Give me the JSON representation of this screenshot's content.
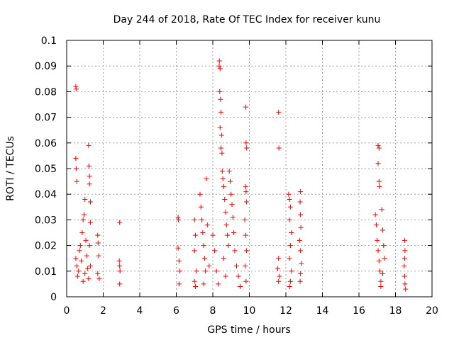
{
  "chart_data": {
    "type": "scatter",
    "title": "Day 244 of 2018, Rate Of TEC Index for receiver kunu",
    "xlabel": "GPS time / hours",
    "ylabel": "ROTI / TECUs",
    "xlim": [
      0,
      20
    ],
    "ylim": [
      0,
      0.1
    ],
    "x_ticks": [
      0,
      2,
      4,
      6,
      8,
      10,
      12,
      14,
      16,
      18,
      20
    ],
    "x_tick_labels": [
      "0",
      "2",
      "4",
      "6",
      "8",
      "10",
      "12",
      "14",
      "16",
      "18",
      "20"
    ],
    "y_ticks": [
      0,
      0.01,
      0.02,
      0.03,
      0.04,
      0.05,
      0.06,
      0.07,
      0.08,
      0.09,
      0.1
    ],
    "y_tick_labels": [
      "0",
      "0.01",
      "0.02",
      "0.03",
      "0.04",
      "0.05",
      "0.06",
      "0.07",
      "0.08",
      "0.09",
      "0.1"
    ],
    "grid": true,
    "marker": "+",
    "color": "#ff0000",
    "series": [
      {
        "name": "ROTI",
        "points": [
          [
            0.5,
            0.082
          ],
          [
            0.52,
            0.081
          ],
          [
            0.5,
            0.054
          ],
          [
            0.52,
            0.05
          ],
          [
            0.55,
            0.045
          ],
          [
            0.5,
            0.015
          ],
          [
            0.55,
            0.012
          ],
          [
            0.6,
            0.008
          ],
          [
            0.65,
            0.01
          ],
          [
            0.7,
            0.018
          ],
          [
            0.75,
            0.02
          ],
          [
            0.8,
            0.014
          ],
          [
            0.85,
            0.025
          ],
          [
            0.9,
            0.03
          ],
          [
            0.95,
            0.032
          ],
          [
            1.0,
            0.038
          ],
          [
            1.05,
            0.022
          ],
          [
            1.1,
            0.016
          ],
          [
            0.9,
            0.006
          ],
          [
            1.0,
            0.009
          ],
          [
            1.15,
            0.011
          ],
          [
            1.2,
            0.059
          ],
          [
            1.22,
            0.051
          ],
          [
            1.25,
            0.047
          ],
          [
            1.25,
            0.044
          ],
          [
            1.3,
            0.037
          ],
          [
            1.3,
            0.029
          ],
          [
            1.25,
            0.02
          ],
          [
            1.3,
            0.012
          ],
          [
            1.2,
            0.007
          ],
          [
            1.7,
            0.024
          ],
          [
            1.72,
            0.021
          ],
          [
            1.75,
            0.016
          ],
          [
            1.7,
            0.009
          ],
          [
            1.78,
            0.007
          ],
          [
            2.9,
            0.029
          ],
          [
            2.88,
            0.014
          ],
          [
            2.9,
            0.012
          ],
          [
            2.92,
            0.01
          ],
          [
            2.9,
            0.005
          ],
          [
            6.1,
            0.031
          ],
          [
            6.12,
            0.03
          ],
          [
            6.1,
            0.019
          ],
          [
            6.15,
            0.014
          ],
          [
            6.2,
            0.01
          ],
          [
            6.15,
            0.005
          ],
          [
            7.0,
            0.03
          ],
          [
            7.05,
            0.024
          ],
          [
            7.0,
            0.018
          ],
          [
            7.1,
            0.01
          ],
          [
            7.0,
            0.006
          ],
          [
            7.05,
            0.004
          ],
          [
            7.3,
            0.04
          ],
          [
            7.35,
            0.035
          ],
          [
            7.4,
            0.03
          ],
          [
            7.45,
            0.025
          ],
          [
            7.5,
            0.02
          ],
          [
            7.55,
            0.015
          ],
          [
            7.6,
            0.01
          ],
          [
            7.5,
            0.005
          ],
          [
            7.65,
            0.046
          ],
          [
            7.7,
            0.028
          ],
          [
            7.8,
            0.012
          ],
          [
            8.0,
            0.024
          ],
          [
            8.1,
            0.018
          ],
          [
            8.2,
            0.01
          ],
          [
            8.3,
            0.005
          ],
          [
            8.35,
            0.09
          ],
          [
            8.36,
            0.092
          ],
          [
            8.4,
            0.089
          ],
          [
            8.38,
            0.08
          ],
          [
            8.42,
            0.077
          ],
          [
            8.45,
            0.072
          ],
          [
            8.4,
            0.066
          ],
          [
            8.48,
            0.063
          ],
          [
            8.45,
            0.058
          ],
          [
            8.5,
            0.056
          ],
          [
            8.52,
            0.049
          ],
          [
            8.55,
            0.046
          ],
          [
            8.6,
            0.043
          ],
          [
            8.65,
            0.038
          ],
          [
            8.7,
            0.033
          ],
          [
            8.75,
            0.028
          ],
          [
            8.8,
            0.024
          ],
          [
            8.85,
            0.02
          ],
          [
            8.9,
            0.049
          ],
          [
            8.95,
            0.045
          ],
          [
            9.0,
            0.04
          ],
          [
            9.05,
            0.036
          ],
          [
            9.1,
            0.031
          ],
          [
            9.15,
            0.025
          ],
          [
            9.2,
            0.018
          ],
          [
            9.3,
            0.012
          ],
          [
            9.4,
            0.008
          ],
          [
            9.5,
            0.004
          ],
          [
            8.6,
            0.015
          ],
          [
            8.7,
            0.008
          ],
          [
            9.8,
            0.074
          ],
          [
            9.82,
            0.06
          ],
          [
            9.85,
            0.058
          ],
          [
            9.8,
            0.043
          ],
          [
            9.82,
            0.041
          ],
          [
            9.85,
            0.037
          ],
          [
            9.75,
            0.03
          ],
          [
            9.8,
            0.024
          ],
          [
            9.85,
            0.018
          ],
          [
            9.78,
            0.012
          ],
          [
            9.82,
            0.006
          ],
          [
            11.6,
            0.072
          ],
          [
            11.62,
            0.058
          ],
          [
            11.6,
            0.015
          ],
          [
            11.55,
            0.011
          ],
          [
            11.65,
            0.008
          ],
          [
            11.6,
            0.006
          ],
          [
            12.15,
            0.04
          ],
          [
            12.2,
            0.038
          ],
          [
            12.25,
            0.035
          ],
          [
            12.2,
            0.03
          ],
          [
            12.3,
            0.025
          ],
          [
            12.25,
            0.02
          ],
          [
            12.2,
            0.015
          ],
          [
            12.3,
            0.01
          ],
          [
            12.25,
            0.006
          ],
          [
            12.2,
            0.004
          ],
          [
            12.8,
            0.041
          ],
          [
            12.78,
            0.037
          ],
          [
            12.8,
            0.032
          ],
          [
            12.82,
            0.027
          ],
          [
            12.75,
            0.022
          ],
          [
            12.8,
            0.018
          ],
          [
            12.85,
            0.013
          ],
          [
            12.8,
            0.009
          ],
          [
            12.78,
            0.006
          ],
          [
            17.05,
            0.059
          ],
          [
            17.1,
            0.058
          ],
          [
            17.05,
            0.052
          ],
          [
            17.1,
            0.045
          ],
          [
            17.12,
            0.043
          ],
          [
            16.9,
            0.032
          ],
          [
            16.95,
            0.028
          ],
          [
            17.0,
            0.022
          ],
          [
            17.05,
            0.018
          ],
          [
            17.1,
            0.014
          ],
          [
            17.15,
            0.01
          ],
          [
            17.2,
            0.006
          ],
          [
            17.25,
            0.034
          ],
          [
            17.3,
            0.026
          ],
          [
            17.35,
            0.02
          ],
          [
            17.4,
            0.015
          ],
          [
            17.3,
            0.009
          ],
          [
            17.2,
            0.004
          ],
          [
            18.5,
            0.022
          ],
          [
            18.52,
            0.018
          ],
          [
            18.5,
            0.015
          ],
          [
            18.48,
            0.012
          ],
          [
            18.5,
            0.008
          ],
          [
            18.52,
            0.005
          ],
          [
            18.55,
            0.003
          ]
        ]
      }
    ]
  }
}
